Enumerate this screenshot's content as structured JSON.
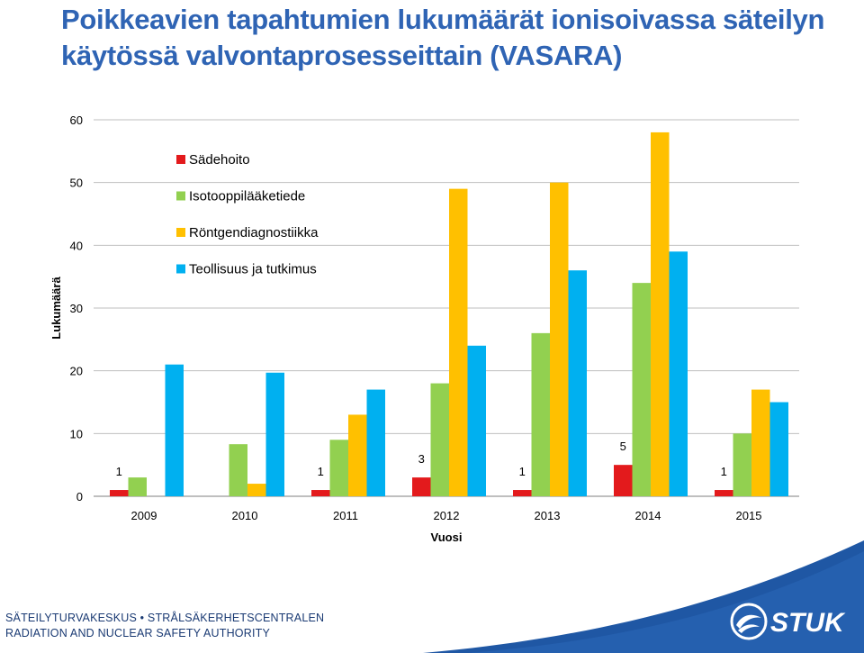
{
  "title": "Poikkeavien tapahtumien lukumäärät ionisoivassa säteilyn käytössä valvontaprosesseittain (VASARA)",
  "chart_data": {
    "type": "bar",
    "xlabel": "Vuosi",
    "ylabel": "Lukumäärä",
    "ylim": [
      0,
      60
    ],
    "yticks": [
      0,
      10,
      20,
      30,
      40,
      50,
      60
    ],
    "grid": true,
    "legend_position": "top-left",
    "categories": [
      "2009",
      "2010",
      "2011",
      "2012",
      "2013",
      "2014",
      "2015"
    ],
    "series": [
      {
        "name": "Sädehoito",
        "color": "#e31a1c",
        "values": [
          1,
          0,
          1,
          3,
          1,
          5,
          1
        ],
        "labels": [
          "1",
          "",
          "1",
          "3",
          "1",
          "5",
          "1"
        ]
      },
      {
        "name": "Isotooppilääketiede",
        "color": "#92d050",
        "values": [
          3,
          8.3,
          9,
          18,
          26,
          34,
          10
        ]
      },
      {
        "name": "Röntgendiagnostiikka",
        "color": "#ffc000",
        "values": [
          0,
          2,
          13,
          49,
          50,
          58,
          17
        ]
      },
      {
        "name": "Teollisuus ja tutkimus",
        "color": "#00b0f0",
        "values": [
          21,
          19.7,
          17,
          24,
          36,
          39,
          15
        ]
      }
    ]
  },
  "footer": {
    "line1": "SÄTEILYTURVAKESKUS • STRÅLSÄKERHETSCENTRALEN",
    "line2": "RADIATION AND NUCLEAR SAFETY AUTHORITY",
    "logo_text": "STUK",
    "band_color": "#1f57a4",
    "text_color": "#1a3a73"
  }
}
